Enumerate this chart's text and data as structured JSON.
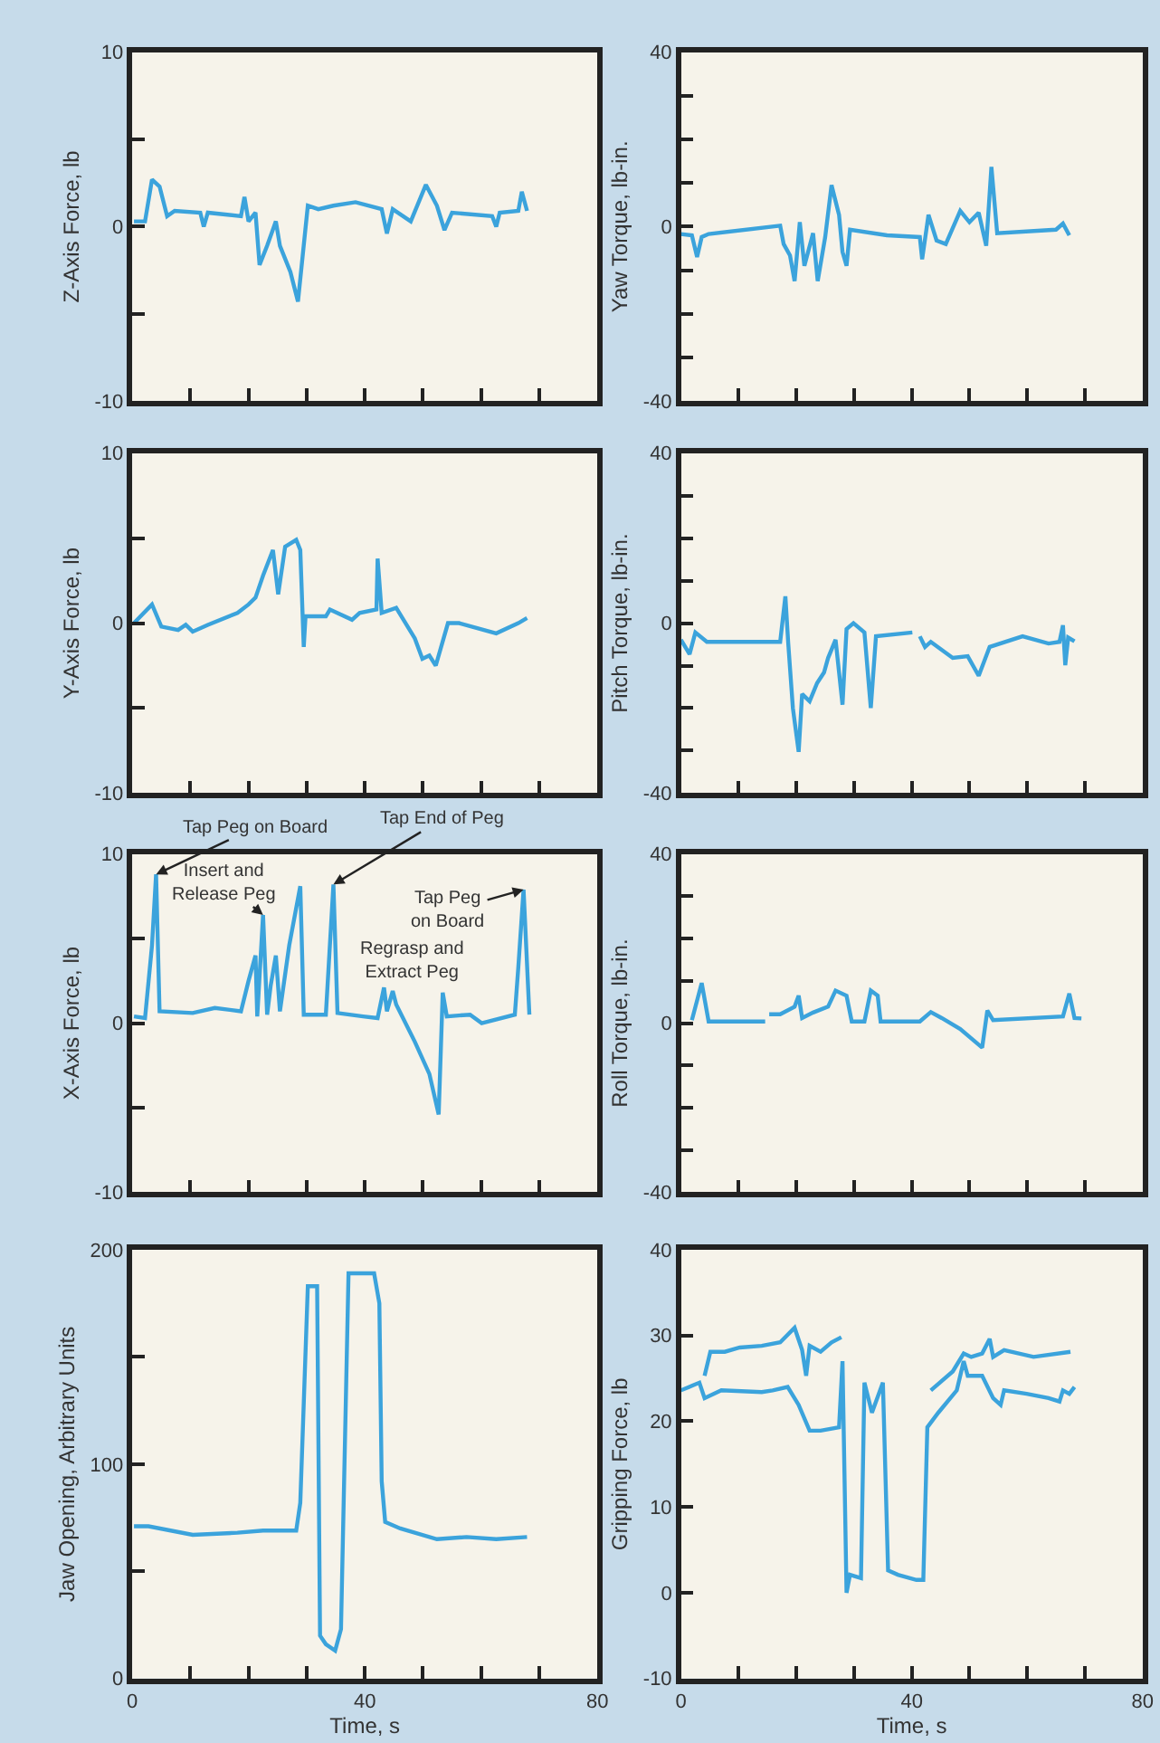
{
  "chart_data": [
    {
      "type": "line",
      "ylabel": "Z-Axis Force, lb",
      "xlim": [
        0,
        80
      ],
      "xticks": [
        {
          "value": 0,
          "label": null
        },
        {
          "value": 10,
          "label": null
        },
        {
          "value": 20,
          "label": null
        },
        {
          "value": 30,
          "label": null
        },
        {
          "value": 40,
          "label": null
        },
        {
          "value": 50,
          "label": null
        },
        {
          "value": 60,
          "label": null
        },
        {
          "value": 70,
          "label": null
        },
        {
          "value": 80,
          "label": null
        }
      ],
      "ylim": [
        -10,
        10
      ],
      "yticks": [
        -10,
        {
          "value": -5,
          "label": null
        },
        0,
        {
          "value": 5,
          "label": null
        },
        10
      ],
      "tick_labels": "y",
      "grid": false,
      "series": [
        {
          "color": "#3ba3dc",
          "x": [
            0.3,
            2.2,
            3.4,
            4.7,
            6.0,
            7.3,
            11.7,
            12.3,
            13,
            18.7,
            19.3,
            20,
            21.2,
            21.9,
            23.2,
            24.7,
            25.4,
            27.2,
            28.5,
            30.2,
            32,
            34.6,
            38.4,
            42.9,
            43.8,
            44.8,
            47.9,
            50.5,
            52.4,
            53.7,
            55,
            61.9,
            62.6,
            63.2,
            66.4,
            67,
            67.9
          ],
          "values": [
            0.3,
            0.3,
            2.7,
            2.3,
            0.6,
            0.9,
            0.8,
            0.0,
            0.8,
            0.6,
            1.7,
            0.3,
            0.8,
            -2.2,
            -1.1,
            0.3,
            -1.1,
            -2.6,
            -4.3,
            1.2,
            1.0,
            1.2,
            1.4,
            1.0,
            -0.4,
            1.0,
            0.3,
            2.4,
            1.2,
            -0.2,
            0.8,
            0.6,
            0.0,
            0.8,
            0.9,
            2.0,
            0.9
          ]
        }
      ]
    },
    {
      "type": "line",
      "ylabel": "Yaw Torque, lb-in.",
      "xlim": [
        0,
        80
      ],
      "xticks": [
        {
          "value": 0,
          "label": null
        },
        {
          "value": 10,
          "label": null
        },
        {
          "value": 20,
          "label": null
        },
        {
          "value": 30,
          "label": null
        },
        {
          "value": 40,
          "label": null
        },
        {
          "value": 50,
          "label": null
        },
        {
          "value": 60,
          "label": null
        },
        {
          "value": 70,
          "label": null
        },
        {
          "value": 80,
          "label": null
        }
      ],
      "ylim": [
        -40,
        40
      ],
      "yticks": [
        -40,
        {
          "value": -30,
          "label": null
        },
        {
          "value": -20,
          "label": null
        },
        {
          "value": -10,
          "label": null
        },
        0,
        {
          "value": 10,
          "label": null
        },
        {
          "value": 20,
          "label": null
        },
        {
          "value": 30,
          "label": null
        },
        40
      ],
      "tick_labels": "y",
      "grid": false,
      "series": [
        {
          "color": "#3ba3dc",
          "x": [
            0,
            1.9,
            2.8,
            3.6,
            4.8,
            17.2,
            17.8,
            18.9,
            19.7,
            20.6,
            21.4,
            22.9,
            23.7,
            25,
            26.1,
            27.4,
            28,
            28.7,
            29.3,
            35.7,
            41.4,
            41.8,
            42.9,
            44.3,
            45.9,
            48.4,
            50,
            51.6,
            52.9,
            53.8,
            54.8,
            65,
            66.2,
            67.3
          ],
          "values": [
            -1.7,
            -2,
            -7,
            -2.4,
            -1.7,
            0.2,
            -4,
            -6.6,
            -12.5,
            1,
            -9,
            -1.5,
            -12.5,
            -2.4,
            9.5,
            2.7,
            -5.8,
            -9,
            -0.7,
            -2,
            -2.4,
            -7.5,
            2.7,
            -3.2,
            -4,
            3.6,
            1,
            3.2,
            -4.4,
            13.7,
            -1.5,
            -0.7,
            0.7,
            -2
          ]
        }
      ]
    },
    {
      "type": "line",
      "ylabel": "Y-Axis Force, lb",
      "xlim": [
        0,
        80
      ],
      "xticks": [
        {
          "value": 0,
          "label": null
        },
        {
          "value": 10,
          "label": null
        },
        {
          "value": 20,
          "label": null
        },
        {
          "value": 30,
          "label": null
        },
        {
          "value": 40,
          "label": null
        },
        {
          "value": 50,
          "label": null
        },
        {
          "value": 60,
          "label": null
        },
        {
          "value": 70,
          "label": null
        },
        {
          "value": 80,
          "label": null
        }
      ],
      "ylim": [
        -10,
        10
      ],
      "yticks": [
        -10,
        {
          "value": -5,
          "label": null
        },
        0,
        {
          "value": 5,
          "label": null
        },
        10
      ],
      "tick_labels": "y",
      "grid": false,
      "series": [
        {
          "color": "#3ba3dc",
          "x": [
            0.3,
            3.4,
            5,
            7.9,
            9.2,
            10.4,
            13,
            18.1,
            20,
            21.2,
            22.5,
            24.2,
            25.1,
            26.3,
            28.2,
            28.9,
            29.5,
            29.8,
            33.3,
            34,
            37.8,
            39.1,
            42,
            42.2,
            42.9,
            45.4,
            48.6,
            49.9,
            51.1,
            52.2,
            54.3,
            56.2,
            62.6,
            66.4,
            67.9
          ],
          "values": [
            0,
            1.1,
            -0.2,
            -0.4,
            -0.1,
            -0.5,
            -0.1,
            0.6,
            1.1,
            1.5,
            2.8,
            4.3,
            1.7,
            4.5,
            4.9,
            4.3,
            -1.4,
            0.4,
            0.4,
            0.8,
            0.2,
            0.6,
            0.8,
            3.8,
            0.6,
            0.9,
            -0.9,
            -2.1,
            -1.9,
            -2.5,
            0,
            0,
            -0.6,
            0,
            0.3
          ]
        }
      ]
    },
    {
      "type": "line",
      "ylabel": "Pitch Torque, lb-in.",
      "xlim": [
        0,
        80
      ],
      "xticks": [
        {
          "value": 0,
          "label": null
        },
        {
          "value": 10,
          "label": null
        },
        {
          "value": 20,
          "label": null
        },
        {
          "value": 30,
          "label": null
        },
        {
          "value": 40,
          "label": null
        },
        {
          "value": 50,
          "label": null
        },
        {
          "value": 60,
          "label": null
        },
        {
          "value": 70,
          "label": null
        },
        {
          "value": 80,
          "label": null
        }
      ],
      "ylim": [
        -40,
        40
      ],
      "yticks": [
        -40,
        {
          "value": -30,
          "label": null
        },
        {
          "value": -20,
          "label": null
        },
        {
          "value": -10,
          "label": null
        },
        0,
        {
          "value": 10,
          "label": null
        },
        {
          "value": 20,
          "label": null
        },
        {
          "value": 30,
          "label": null
        },
        40
      ],
      "tick_labels": "y",
      "grid": false,
      "series": [
        {
          "color": "#3ba3dc",
          "x": [
            0,
            1.5,
            2.5,
            4.5,
            10.2,
            17.2,
            18.1,
            18.6,
            19.4,
            20.4,
            21,
            22.3,
            23.6,
            24.8,
            25.5,
            26.8,
            28,
            28.7,
            29.9,
            31.8,
            32.9,
            33.8,
            40.1,
            40.8,
            41.4,
            42.3,
            43.3,
            47.1,
            49.7,
            51.6,
            53.5,
            59.2,
            63.7,
            65.6,
            66.2,
            66.6,
            67.1,
            68.2
          ],
          "values": [
            -3.9,
            -7.3,
            -2.2,
            -4.4,
            -4.4,
            -4.4,
            6.3,
            -4.8,
            -20,
            -30.3,
            -16.7,
            -18.4,
            -14.1,
            -11.6,
            -8.2,
            -3.9,
            -19.2,
            -1.4,
            0,
            -2.2,
            -20,
            -3.1,
            -2.2,
            null,
            -3.1,
            -5.6,
            -4.4,
            -8.2,
            -7.8,
            -12.4,
            -5.6,
            -3.1,
            -4.8,
            -4.4,
            -0.5,
            -9.9,
            -3.4,
            -4.3
          ]
        }
      ]
    },
    {
      "type": "line",
      "ylabel": "X-Axis Force, lb",
      "xlim": [
        0,
        80
      ],
      "xticks": [
        {
          "value": 0,
          "label": null
        },
        {
          "value": 10,
          "label": null
        },
        {
          "value": 20,
          "label": null
        },
        {
          "value": 30,
          "label": null
        },
        {
          "value": 40,
          "label": null
        },
        {
          "value": 50,
          "label": null
        },
        {
          "value": 60,
          "label": null
        },
        {
          "value": 70,
          "label": null
        },
        {
          "value": 80,
          "label": null
        }
      ],
      "ylim": [
        -10,
        10
      ],
      "yticks": [
        -10,
        {
          "value": -5,
          "label": null
        },
        0,
        {
          "value": 5,
          "label": null
        },
        10
      ],
      "tick_labels": "y",
      "grid": false,
      "series": [
        {
          "color": "#3ba3dc",
          "x": [
            0.3,
            2.2,
            3.4,
            4.1,
            4.7,
            10.4,
            14.2,
            18.7,
            20,
            21.2,
            21.5,
            22.5,
            23.2,
            23.8,
            24.7,
            25.4,
            27,
            28.9,
            29.5,
            33.3,
            34.6,
            35.3,
            39.7,
            42.2,
            43.3,
            43.8,
            44.8,
            45.4,
            48.6,
            51.1,
            52.7,
            53.4,
            54.1,
            58.1,
            60.1,
            65.8,
            66.4,
            67.3,
            68.3
          ],
          "values": [
            0.4,
            0.3,
            4.6,
            8.8,
            0.7,
            0.6,
            0.9,
            0.7,
            2.5,
            4.0,
            0.4,
            6.4,
            0.5,
            2.2,
            4.0,
            0.7,
            4.6,
            8.1,
            0.5,
            0.5,
            8.2,
            0.6,
            0.4,
            0.3,
            2.1,
            0.7,
            1.9,
            1.1,
            -1.1,
            -3.0,
            -5.4,
            1.8,
            0.4,
            0.5,
            0.0,
            0.5,
            3.3,
            7.9,
            0.5
          ]
        }
      ],
      "annotations": [
        {
          "text": "Tap Peg on Board",
          "x": 4.1,
          "y": 8.8
        },
        {
          "text": "Insert and\nRelease Peg",
          "x": 22.5,
          "y": 6.4
        },
        {
          "text": "Tap End of Peg",
          "x": 34.6,
          "y": 8.2
        },
        "Regrasp and\nExtract Peg",
        {
          "text": "Tap Peg\non Board",
          "x": 67.3,
          "y": 7.9
        }
      ]
    },
    {
      "type": "line",
      "ylabel": "Roll Torque, lb-in.",
      "xlim": [
        0,
        80
      ],
      "xticks": [
        {
          "value": 0,
          "label": null
        },
        {
          "value": 10,
          "label": null
        },
        {
          "value": 20,
          "label": null
        },
        {
          "value": 30,
          "label": null
        },
        {
          "value": 40,
          "label": null
        },
        {
          "value": 50,
          "label": null
        },
        {
          "value": 60,
          "label": null
        },
        {
          "value": 70,
          "label": null
        },
        {
          "value": 80,
          "label": null
        }
      ],
      "ylim": [
        -40,
        40
      ],
      "yticks": [
        -40,
        {
          "value": -30,
          "label": null
        },
        {
          "value": -20,
          "label": null
        },
        {
          "value": -10,
          "label": null
        },
        0,
        {
          "value": 10,
          "label": null
        },
        {
          "value": 20,
          "label": null
        },
        {
          "value": 30,
          "label": null
        },
        40
      ],
      "tick_labels": "y",
      "grid": false,
      "series": [
        {
          "color": "#3ba3dc",
          "x": [
            1.9,
            3.6,
            4.8,
            14.6,
            15.0,
            15.3,
            17.2,
            19.7,
            20.4,
            21,
            22.9,
            25.5,
            26.8,
            28.7,
            29.6,
            31.8,
            32.9,
            34.1,
            34.6,
            41.4,
            43.3,
            45.2,
            48.4,
            52.2,
            53.1,
            54.1,
            66.2,
            67.3,
            68.2,
            69.4
          ],
          "values": [
            0.7,
            9.5,
            0.4,
            0.4,
            null,
            2.1,
            2.1,
            3.9,
            6.5,
            1.2,
            2.5,
            3.9,
            7.7,
            6.5,
            0.4,
            0.4,
            7.7,
            6.5,
            0.4,
            0.4,
            2.6,
            1.2,
            -1.4,
            -5.8,
            3.0,
            0.7,
            1.6,
            7.0,
            1.2,
            1.1
          ]
        }
      ]
    },
    {
      "type": "line",
      "ylabel": "Jaw Opening, Arbitrary Units",
      "xlabel": "Time, s",
      "xlim": [
        0,
        80
      ],
      "xticks": [
        0,
        {
          "value": 10,
          "label": null
        },
        {
          "value": 20,
          "label": null
        },
        {
          "value": 30,
          "label": null
        },
        40,
        {
          "value": 50,
          "label": null
        },
        {
          "value": 60,
          "label": null
        },
        {
          "value": 70,
          "label": null
        },
        80
      ],
      "ylim": [
        0,
        200
      ],
      "yticks": [
        0,
        {
          "value": 50,
          "label": null
        },
        100,
        {
          "value": 150,
          "label": null
        },
        200
      ],
      "grid": false,
      "series": [
        {
          "color": "#3ba3dc",
          "x": [
            0.3,
            2.8,
            10.4,
            18.1,
            22.5,
            28.2,
            28.9,
            30.2,
            31.8,
            32.3,
            33.3,
            34.9,
            35.9,
            37.2,
            38.4,
            41.6,
            42.5,
            42.9,
            43.5,
            46.1,
            52.4,
            57.5,
            62.6,
            67.9
          ],
          "values": [
            71,
            71,
            67,
            68,
            69,
            69,
            82,
            183,
            183,
            20,
            16,
            13,
            23,
            189,
            189,
            189,
            175,
            92,
            73,
            70,
            65,
            66,
            65,
            66
          ]
        }
      ]
    },
    {
      "type": "line",
      "ylabel": "Gripping Force, lb",
      "xlabel": "Time, s",
      "xlim": [
        0,
        80
      ],
      "xticks": [
        0,
        {
          "value": 10,
          "label": null
        },
        {
          "value": 20,
          "label": null
        },
        {
          "value": 30,
          "label": null
        },
        40,
        {
          "value": 50,
          "label": null
        },
        {
          "value": 60,
          "label": null
        },
        {
          "value": 70,
          "label": null
        },
        80
      ],
      "ylim": [
        -10,
        40
      ],
      "yticks": [
        -10,
        0,
        10,
        20,
        30,
        40
      ],
      "grid": false,
      "series": [
        {
          "color": "#3ba3dc",
          "x": [
            4.1,
            5.1,
            7.6,
            10.2,
            14,
            17.2,
            19.7,
            21,
            21.7,
            22.3,
            24.2,
            26.1,
            27.8,
            35,
            43.3,
            47.1,
            49,
            50.3,
            52.2,
            53.5,
            54.1,
            56,
            61.1,
            67.5
          ],
          "values": [
            25.3,
            28.1,
            28.1,
            28.6,
            28.8,
            29.2,
            30.9,
            28.3,
            25.3,
            28.8,
            28.1,
            29.2,
            29.8,
            null,
            23.6,
            25.8,
            27.9,
            27.5,
            27.9,
            29.6,
            27.5,
            28.3,
            27.5,
            28.1
          ]
        },
        {
          "color": "#3ba3dc",
          "x": [
            0,
            3.2,
            4.1,
            7,
            14,
            15.9,
            18.5,
            20.4,
            22.3,
            24.2,
            27.4,
            28,
            28.7,
            29.3,
            31.2,
            31.8,
            33.1,
            35,
            35.9,
            37.6,
            40.8,
            42,
            42.7,
            44.6,
            47.8,
            49,
            49.7,
            52.2,
            54.1,
            55.4,
            56,
            59.9,
            63.7,
            65.6,
            66.2,
            67.3,
            68.2
          ],
          "values": [
            23.6,
            24.5,
            22.7,
            23.6,
            23.4,
            23.6,
            24,
            21.9,
            18.9,
            18.9,
            19.3,
            27,
            0,
            2.1,
            1.7,
            24.5,
            21,
            24.5,
            2.6,
            2.1,
            1.5,
            1.5,
            19.3,
            21,
            23.6,
            27,
            25.3,
            25.3,
            22.7,
            21.9,
            23.6,
            23.2,
            22.7,
            22.3,
            23.6,
            23.2,
            24
          ]
        }
      ]
    }
  ]
}
